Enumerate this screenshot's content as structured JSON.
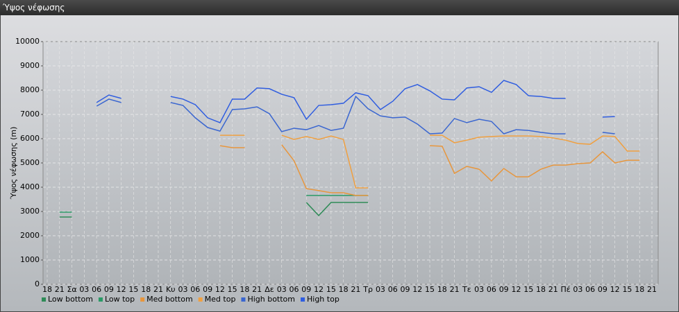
{
  "chart_data": {
    "type": "line",
    "title": "Ύψος νέφωσης",
    "y_label": "Ύψος νέφωσης (m)",
    "categories": [
      "18",
      "21",
      "Σα",
      "03",
      "06",
      "09",
      "12",
      "15",
      "18",
      "21",
      "Κυ",
      "03",
      "06",
      "09",
      "12",
      "15",
      "18",
      "21",
      "Δε",
      "03",
      "06",
      "09",
      "12",
      "15",
      "18",
      "21",
      "Τρ",
      "03",
      "06",
      "09",
      "12",
      "15",
      "18",
      "21",
      "Τε",
      "03",
      "06",
      "09",
      "12",
      "15",
      "18",
      "21",
      "Πέ",
      "03",
      "06",
      "09",
      "12",
      "15",
      "18",
      "21"
    ],
    "ylim": [
      0,
      10000
    ],
    "yticks": [
      0,
      1000,
      2000,
      3000,
      4000,
      5000,
      6000,
      7000,
      8000,
      9000,
      10000
    ],
    "grid": true,
    "series": [
      {
        "name": "Low bottom",
        "color": "#2e8b57",
        "values": [
          null,
          2770,
          2770,
          null,
          null,
          null,
          null,
          null,
          null,
          null,
          null,
          null,
          null,
          null,
          null,
          null,
          null,
          null,
          null,
          null,
          null,
          3370,
          2830,
          3370,
          3370,
          3370,
          3370,
          null,
          null,
          null,
          null,
          null,
          null,
          null,
          null,
          null,
          null,
          null,
          null,
          null,
          null,
          null,
          null,
          null,
          null,
          null,
          null,
          null,
          null,
          null
        ]
      },
      {
        "name": "Low top",
        "color": "#2a9a66",
        "values": [
          null,
          2970,
          2970,
          null,
          null,
          null,
          null,
          null,
          null,
          null,
          null,
          null,
          null,
          null,
          null,
          null,
          null,
          null,
          null,
          null,
          null,
          3660,
          3660,
          3660,
          3660,
          3660,
          3660,
          null,
          null,
          null,
          null,
          null,
          null,
          null,
          null,
          null,
          null,
          null,
          null,
          null,
          null,
          null,
          null,
          null,
          null,
          null,
          null,
          null,
          null,
          null
        ]
      },
      {
        "name": "Med bottom",
        "color": "#e8963c",
        "values": [
          null,
          null,
          null,
          null,
          null,
          null,
          null,
          null,
          null,
          null,
          null,
          null,
          null,
          null,
          5710,
          5630,
          5630,
          null,
          null,
          5750,
          5090,
          3940,
          3860,
          3770,
          3770,
          3660,
          3660,
          null,
          null,
          null,
          null,
          5710,
          5690,
          4570,
          4860,
          4740,
          4260,
          4770,
          4430,
          4430,
          4740,
          4910,
          4910,
          4970,
          5000,
          5460,
          5000,
          5110,
          5110,
          null
        ]
      },
      {
        "name": "Med top",
        "color": "#f0a040",
        "values": [
          null,
          null,
          null,
          null,
          null,
          null,
          null,
          null,
          null,
          null,
          null,
          null,
          null,
          null,
          6140,
          6140,
          6140,
          null,
          null,
          6140,
          5970,
          6090,
          5970,
          6110,
          5970,
          3970,
          3970,
          null,
          null,
          null,
          null,
          6140,
          6140,
          5830,
          5940,
          6060,
          6090,
          6110,
          6110,
          6110,
          6090,
          6030,
          5940,
          5800,
          5770,
          6110,
          6090,
          5490,
          5490,
          null
        ]
      },
      {
        "name": "High bottom",
        "color": "#3a66d0",
        "values": [
          null,
          null,
          null,
          null,
          7340,
          7630,
          7490,
          null,
          null,
          null,
          7490,
          7370,
          6860,
          6460,
          6310,
          7200,
          7230,
          7310,
          7030,
          6290,
          6430,
          6370,
          6540,
          6340,
          6430,
          7740,
          7230,
          6940,
          6860,
          6890,
          6600,
          6200,
          6230,
          6830,
          6660,
          6800,
          6710,
          6200,
          6370,
          6340,
          6260,
          6200,
          6200,
          null,
          null,
          6260,
          6200,
          null,
          null,
          null
        ]
      },
      {
        "name": "High top",
        "color": "#2f5de0",
        "values": [
          null,
          null,
          null,
          null,
          7490,
          7800,
          7660,
          null,
          null,
          null,
          7740,
          7630,
          7400,
          6860,
          6660,
          7630,
          7630,
          8090,
          8060,
          7830,
          7690,
          6800,
          7370,
          7400,
          7460,
          7890,
          7770,
          7200,
          7540,
          8060,
          8230,
          7970,
          7630,
          7600,
          8090,
          8140,
          7910,
          8400,
          8230,
          7770,
          7740,
          7660,
          7660,
          null,
          null,
          6890,
          6910,
          null,
          null,
          null
        ]
      }
    ]
  }
}
